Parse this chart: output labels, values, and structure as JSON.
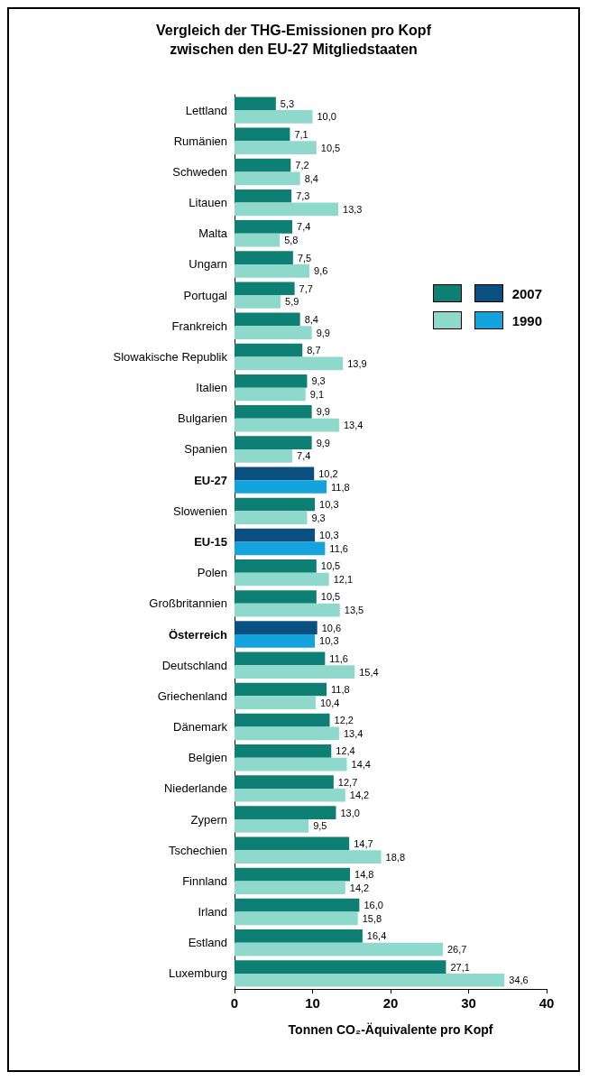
{
  "chart_data": {
    "type": "bar",
    "orientation": "horizontal",
    "title": "Vergleich der THG-Emissionen pro Kopf\nzwischen den EU-27 Mitgliedstaaten",
    "xlabel": "Tonnen CO₂-Äquivalente pro Kopf",
    "categories": [
      "Lettland",
      "Rumänien",
      "Schweden",
      "Litauen",
      "Malta",
      "Ungarn",
      "Portugal",
      "Frankreich",
      "Slowakische Republik",
      "Italien",
      "Bulgarien",
      "Spanien",
      "EU-27",
      "Slowenien",
      "EU-15",
      "Polen",
      "Großbritannien",
      "Österreich",
      "Deutschland",
      "Griechenland",
      "Dänemark",
      "Belgien",
      "Niederlande",
      "Zypern",
      "Tschechien",
      "Finnland",
      "Irland",
      "Estland",
      "Luxemburg"
    ],
    "series": [
      {
        "name": "2007",
        "color": "#0e7f73",
        "colors": [
          "#0e7f73",
          "#0e7f73",
          "#0e7f73",
          "#0e7f73",
          "#0e7f73",
          "#0e7f73",
          "#0e7f73",
          "#0e7f73",
          "#0e7f73",
          "#0e7f73",
          "#0e7f73",
          "#0e7f73",
          "#0b4f80",
          "#0e7f73",
          "#0b4f80",
          "#0e7f73",
          "#0e7f73",
          "#0b4f80",
          "#0e7f73",
          "#0e7f73",
          "#0e7f73",
          "#0e7f73",
          "#0e7f73",
          "#0e7f73",
          "#0e7f73",
          "#0e7f73",
          "#0e7f73",
          "#0e7f73",
          "#0e7f73"
        ],
        "values": [
          5.3,
          7.1,
          7.2,
          7.3,
          7.4,
          7.5,
          7.7,
          8.4,
          8.7,
          9.3,
          9.9,
          9.9,
          10.2,
          10.3,
          10.3,
          10.5,
          10.5,
          10.6,
          11.6,
          11.8,
          12.2,
          12.4,
          12.7,
          13.0,
          14.7,
          14.8,
          16.0,
          16.4,
          27.1
        ],
        "value_labels": [
          "5,3",
          "7,1",
          "7,2",
          "7,3",
          "7,4",
          "7,5",
          "7,7",
          "8,4",
          "8,7",
          "9,3",
          "9,9",
          "9,9",
          "10,2",
          "10,3",
          "10,3",
          "10,5",
          "10,5",
          "10,6",
          "11,6",
          "11,8",
          "12,2",
          "12,4",
          "12,7",
          "13,0",
          "14,7",
          "14,8",
          "16,0",
          "16,4",
          "27,1"
        ]
      },
      {
        "name": "1990",
        "color": "#8fd8cc",
        "colors": [
          "#8fd8cc",
          "#8fd8cc",
          "#8fd8cc",
          "#8fd8cc",
          "#8fd8cc",
          "#8fd8cc",
          "#8fd8cc",
          "#8fd8cc",
          "#8fd8cc",
          "#8fd8cc",
          "#8fd8cc",
          "#8fd8cc",
          "#14a3dc",
          "#8fd8cc",
          "#14a3dc",
          "#8fd8cc",
          "#8fd8cc",
          "#14a3dc",
          "#8fd8cc",
          "#8fd8cc",
          "#8fd8cc",
          "#8fd8cc",
          "#8fd8cc",
          "#8fd8cc",
          "#8fd8cc",
          "#8fd8cc",
          "#8fd8cc",
          "#8fd8cc",
          "#8fd8cc"
        ],
        "values": [
          10.0,
          10.5,
          8.4,
          13.3,
          5.8,
          9.6,
          5.9,
          9.9,
          13.9,
          9.1,
          13.4,
          7.4,
          11.8,
          9.3,
          11.6,
          12.1,
          13.5,
          10.3,
          15.4,
          10.4,
          13.4,
          14.4,
          14.2,
          9.5,
          18.8,
          14.2,
          15.8,
          26.7,
          34.6
        ],
        "value_labels": [
          "10,0",
          "10,5",
          "8,4",
          "13,3",
          "5,8",
          "9,6",
          "5,9",
          "9,9",
          "13,9",
          "9,1",
          "13,4",
          "7,4",
          "11,8",
          "9,3",
          "11,6",
          "12,1",
          "13,5",
          "10,3",
          "15,4",
          "10,4",
          "13,4",
          "14,4",
          "14,2",
          "9,5",
          "18,8",
          "14,2",
          "15,8",
          "26,7",
          "34,6"
        ]
      }
    ],
    "xlim": [
      0,
      40
    ],
    "xticks": [
      0,
      10,
      20,
      30,
      40
    ],
    "grid": false,
    "legend": "right"
  }
}
